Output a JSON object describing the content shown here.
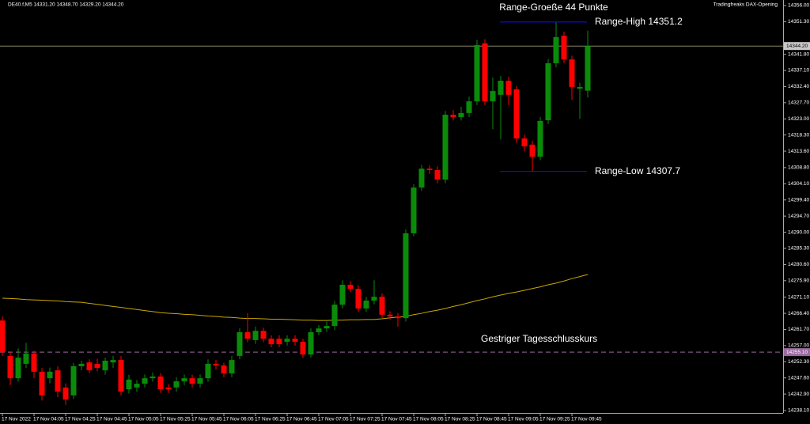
{
  "chart_data": {
    "type": "candlestick",
    "title": "DE40.f,M5  14331.20 14348.70 14329.20 14344.20",
    "indicator_name": "Tradingfreaks DAX-Opening",
    "annotation": "Range-Groeße 44 Punkte",
    "range_high": {
      "label": "Range-High 14351.2",
      "value": 14351.2
    },
    "range_low": {
      "label": "Range-Low 14307.7",
      "value": 14307.7
    },
    "previous_close": {
      "label": "Gestriger Tagesschlusskurs",
      "value": 14255.1,
      "price_label": "14255.10"
    },
    "current_price": {
      "value": 14344.2,
      "label": "14344.20"
    },
    "up_color": "#0a8c0a",
    "down_color": "#ff0000",
    "ma_color": "#c9a800",
    "range_color": "#1010e0",
    "close_color": "#9a6aa0",
    "categories": [
      "17 Nov 2022",
      null,
      null,
      null,
      "17 Nov 04:05",
      null,
      null,
      null,
      "17 Nov 04:25",
      null,
      null,
      null,
      "17 Nov 04:45",
      null,
      null,
      null,
      "17 Nov 05:05",
      null,
      null,
      null,
      "17 Nov 05:25",
      null,
      null,
      null,
      "17 Nov 05:45",
      null,
      null,
      null,
      "17 Nov 06:05",
      null,
      null,
      null,
      "17 Nov 06:25",
      null,
      null,
      null,
      "17 Nov 06:45",
      null,
      null,
      null,
      "17 Nov 07:05",
      null,
      null,
      null,
      "17 Nov 07:25",
      null,
      null,
      null,
      "17 Nov 07:45",
      null,
      null,
      null,
      "17 Nov 08:05",
      null,
      null,
      null,
      "17 Nov 08:25",
      null,
      null,
      null,
      "17 Nov 08:45",
      null,
      null,
      null,
      "17 Nov 09:05",
      null,
      null,
      null,
      "17 Nov 09:25",
      null,
      null,
      null,
      "17 Nov 09:45",
      null,
      null
    ],
    "open": [
      14264.3,
      14254.0,
      14247.5,
      14251.7,
      14254.7,
      14249.4,
      14247.5,
      14249.8,
      14244.8,
      14242.5,
      14251.0,
      14252.1,
      14251.7,
      14249.8,
      14252.1,
      14252.8,
      14244.3,
      14244.8,
      14245.9,
      14247.5,
      14248.0,
      14244.8,
      14244.8,
      14246.6,
      14247.5,
      14245.9,
      14247.5,
      14251.7,
      14251.2,
      14248.9,
      14254.0,
      14260.9,
      14258.6,
      14261.3,
      14259.0,
      14259.0,
      14258.1,
      14259.0,
      14258.1,
      14254.4,
      14260.9,
      14262.0,
      14262.7,
      14268.9,
      14274.7,
      14273.5,
      14267.8,
      14270.1,
      14271.2,
      14266.0,
      14265.5,
      14265.0,
      14289.7,
      14303.0,
      14308.5,
      14308.1,
      14305.3,
      14324.2,
      14323.5,
      14324.7,
      14328.1,
      14345.0,
      14328.1,
      14330.0,
      14334.1,
      14331.6,
      14317.3,
      14315.5,
      14312.0,
      14322.6,
      14339.2,
      14347.2,
      14340.3,
      14331.8,
      14331.2
    ],
    "high": [
      14265.5,
      14255.1,
      14256.2,
      14257.8,
      14255.5,
      14250.5,
      14250.6,
      14251.0,
      14246.0,
      14252.0,
      14252.6,
      14253.0,
      14253.2,
      14253.5,
      14254.0,
      14254.0,
      14248.5,
      14247.0,
      14248.6,
      14249.2,
      14249.0,
      14245.8,
      14247.8,
      14248.6,
      14248.5,
      14248.6,
      14253.0,
      14252.8,
      14252.0,
      14254.0,
      14262.0,
      14266.4,
      14262.5,
      14262.2,
      14260.0,
      14260.0,
      14260.0,
      14260.0,
      14259.0,
      14262.0,
      14263.0,
      14264.0,
      14270.0,
      14276.0,
      14275.8,
      14274.6,
      14271.2,
      14276.0,
      14272.2,
      14267.0,
      14266.5,
      14290.8,
      14304.0,
      14309.6,
      14309.5,
      14309.2,
      14325.3,
      14325.5,
      14326.5,
      14329.5,
      14346.0,
      14346.2,
      14335.0,
      14335.5,
      14335.2,
      14332.6,
      14318.4,
      14316.6,
      14323.5,
      14340.4,
      14351.2,
      14348.4,
      14341.4,
      14333.5,
      14348.7
    ],
    "low": [
      14254.0,
      14245.5,
      14246.5,
      14250.5,
      14247.5,
      14241.0,
      14246.0,
      14242.0,
      14239.8,
      14241.5,
      14249.8,
      14249.0,
      14249.5,
      14248.5,
      14250.5,
      14242.5,
      14243.0,
      14243.5,
      14244.8,
      14246.5,
      14243.2,
      14243.2,
      14243.6,
      14245.5,
      14244.8,
      14244.8,
      14246.5,
      14250.0,
      14247.8,
      14247.8,
      14253.0,
      14258.0,
      14257.5,
      14258.0,
      14256.5,
      14256.5,
      14257.0,
      14257.0,
      14253.4,
      14253.5,
      14260.0,
      14261.0,
      14261.5,
      14267.8,
      14272.5,
      14266.8,
      14266.8,
      14269.0,
      14265.0,
      14264.5,
      14262.5,
      14264.0,
      14288.8,
      14302.0,
      14307.0,
      14304.3,
      14304.3,
      14322.5,
      14322.5,
      14323.5,
      14327.0,
      14327.0,
      14320.0,
      14317.0,
      14327.0,
      14316.0,
      14313.5,
      14307.7,
      14311.0,
      14321.5,
      14338.0,
      14339.2,
      14328.5,
      14323.0,
      14329.2
    ],
    "close": [
      14255.1,
      14247.5,
      14253.5,
      14254.7,
      14249.4,
      14242.5,
      14249.4,
      14243.6,
      14241.3,
      14251.0,
      14251.7,
      14249.8,
      14250.5,
      14252.6,
      14252.8,
      14243.6,
      14247.1,
      14245.9,
      14247.5,
      14248.0,
      14244.3,
      14244.3,
      14246.6,
      14247.5,
      14245.9,
      14247.5,
      14251.7,
      14251.2,
      14248.9,
      14252.8,
      14260.9,
      14259.0,
      14261.3,
      14259.0,
      14257.4,
      14257.4,
      14259.0,
      14258.1,
      14254.4,
      14260.9,
      14262.0,
      14262.7,
      14268.9,
      14274.7,
      14273.5,
      14267.8,
      14270.1,
      14271.2,
      14266.0,
      14265.5,
      14265.0,
      14289.7,
      14303.0,
      14308.5,
      14308.1,
      14305.3,
      14324.2,
      14323.5,
      14324.7,
      14328.1,
      14344.5,
      14328.1,
      14331.1,
      14334.1,
      14330.0,
      14317.3,
      14315.0,
      14312.0,
      14322.4,
      14339.2,
      14346.8,
      14340.3,
      14332.3,
      14332.3,
      14344.2
    ],
    "ma": [
      14270.8,
      14270.7,
      14270.6,
      14270.4,
      14270.3,
      14270.2,
      14270.1,
      14270.0,
      14269.8,
      14269.7,
      14269.6,
      14269.3,
      14269.0,
      14268.7,
      14268.4,
      14268.1,
      14267.8,
      14267.5,
      14267.2,
      14266.9,
      14266.6,
      14266.4,
      14266.3,
      14266.1,
      14266.0,
      14265.8,
      14265.6,
      14265.5,
      14265.3,
      14265.2,
      14265.0,
      14264.9,
      14264.9,
      14264.8,
      14264.7,
      14264.7,
      14264.6,
      14264.5,
      14264.4,
      14264.4,
      14264.3,
      14264.3,
      14264.4,
      14264.4,
      14264.5,
      14264.5,
      14264.6,
      14264.6,
      14264.8,
      14265.1,
      14265.3,
      14265.5,
      14266.0,
      14266.4,
      14266.9,
      14267.3,
      14267.8,
      14268.4,
      14268.9,
      14269.5,
      14270.1,
      14270.6,
      14271.2,
      14271.7,
      14272.2,
      14272.6,
      14273.1,
      14273.6,
      14274.1,
      14274.7,
      14275.2,
      14275.8,
      14276.5,
      14277.1,
      14277.7
    ],
    "ylim": [
      14237.4,
      14357.6
    ],
    "yticks": [
      {
        "value": 14356,
        "label": "14356.00"
      },
      {
        "value": 14351.3,
        "label": "14351.30"
      },
      {
        "value": 14341.8,
        "label": "14341.80"
      },
      {
        "value": 14337.1,
        "label": "14337.10"
      },
      {
        "value": 14332.4,
        "label": "14332.40"
      },
      {
        "value": 14327.7,
        "label": "14327.70"
      },
      {
        "value": 14323,
        "label": "14323.00"
      },
      {
        "value": 14318.3,
        "label": "14318.30"
      },
      {
        "value": 14313.6,
        "label": "14313.60"
      },
      {
        "value": 14308.8,
        "label": "14308.80"
      },
      {
        "value": 14304.1,
        "label": "14304.10"
      },
      {
        "value": 14299.4,
        "label": "14299.40"
      },
      {
        "value": 14294.7,
        "label": "14294.70"
      },
      {
        "value": 14290,
        "label": "14290.00"
      },
      {
        "value": 14285.3,
        "label": "14285.30"
      },
      {
        "value": 14280.6,
        "label": "14280.60"
      },
      {
        "value": 14275.9,
        "label": "14275.90"
      },
      {
        "value": 14271.1,
        "label": "14271.10"
      },
      {
        "value": 14266.4,
        "label": "14266.40"
      },
      {
        "value": 14261.7,
        "label": "14261.70"
      },
      {
        "value": 14257,
        "label": "14257.00"
      },
      {
        "value": 14252.3,
        "label": "14252.30"
      },
      {
        "value": 14247.6,
        "label": "14247.60"
      },
      {
        "value": 14242.9,
        "label": "14242.90"
      },
      {
        "value": 14238.1,
        "label": "14238.10"
      }
    ]
  }
}
